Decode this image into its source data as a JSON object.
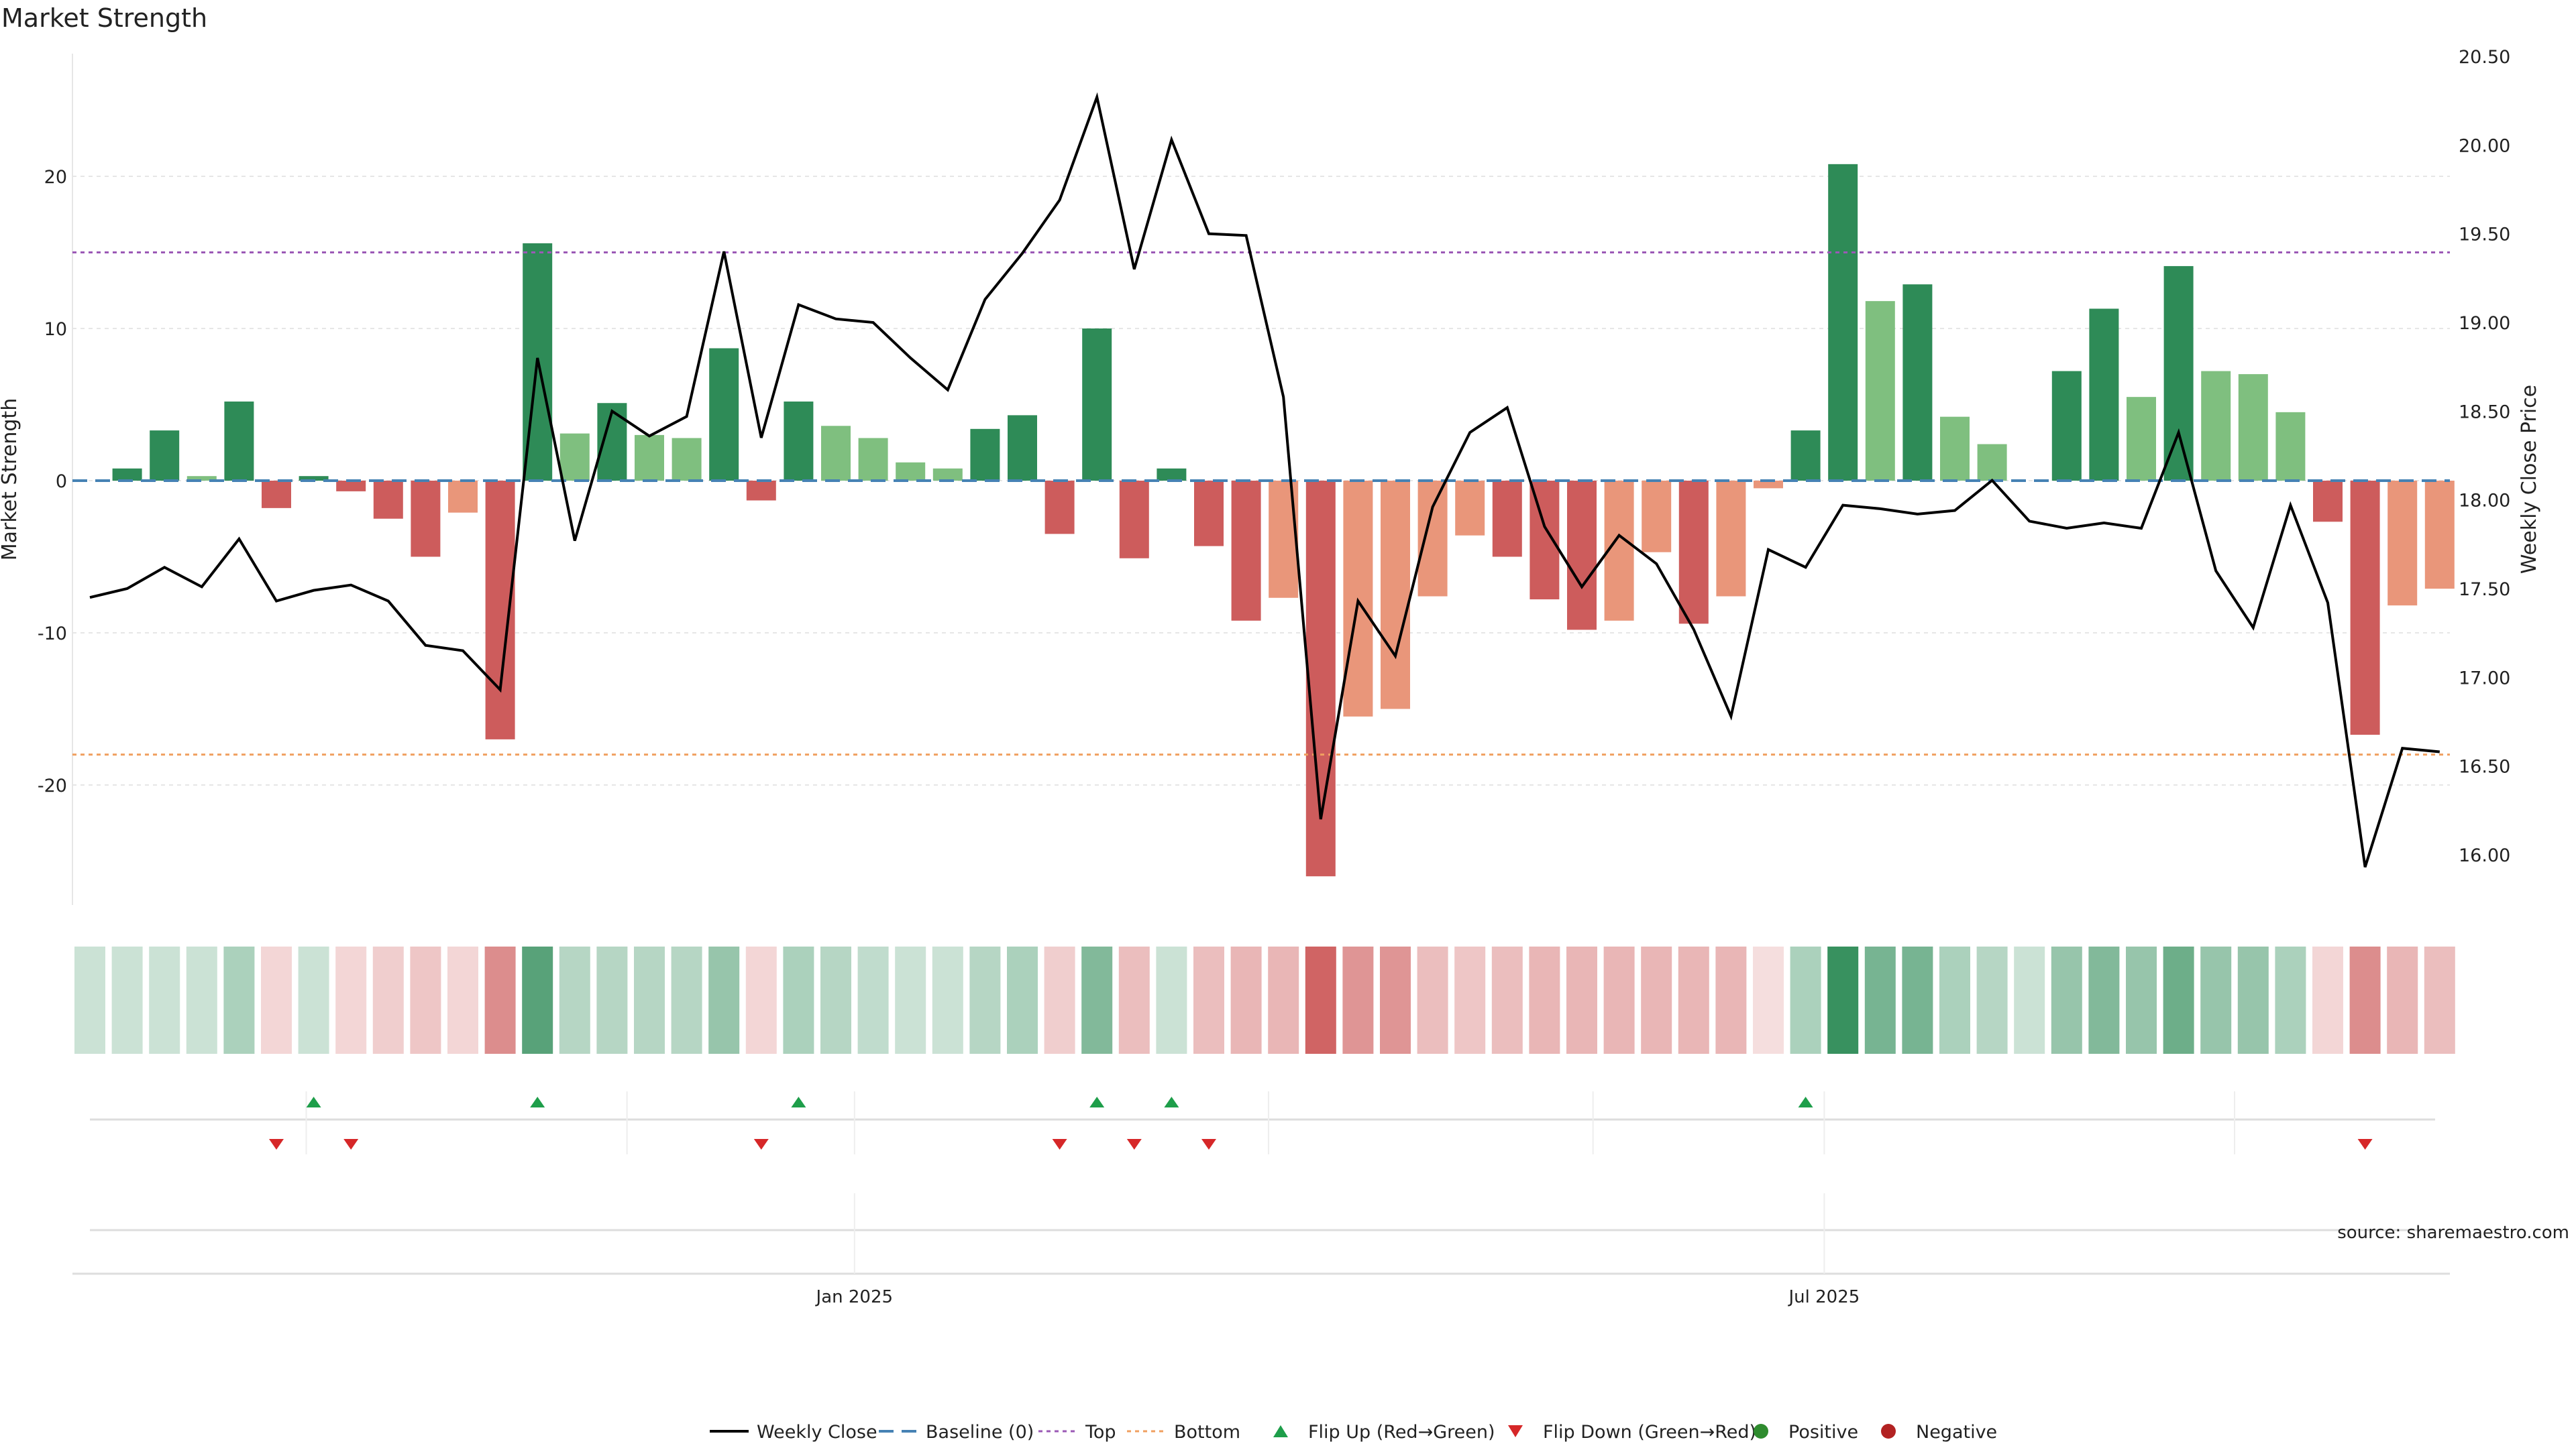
{
  "colors": {
    "strong_green": "#2e8b57",
    "light_green": "#7fbf7f",
    "strong_red": "#cd5c5c",
    "light_red": "#e9967a",
    "price_line": "#000000",
    "baseline": "#4682b4",
    "top": "#9b59b6",
    "bottom": "#f0a060",
    "flip_up": "#1e9e4a",
    "flip_down": "#d62728",
    "positive": "#2e8b2e",
    "negative": "#b22222",
    "source_text": "#888888"
  },
  "chart_data": {
    "type": "bar",
    "title": "Market Strength",
    "ylabel": "Market Strength",
    "y2label": "Weekly Close Price",
    "ylim": [
      -28,
      28
    ],
    "y2lim": [
      15.8,
      20.5
    ],
    "yticks": [
      -20,
      -10,
      0,
      10,
      20
    ],
    "y2ticks": [
      16.0,
      16.5,
      17.0,
      17.5,
      18.0,
      18.5,
      19.0,
      19.5,
      20.0,
      20.5
    ],
    "x_date_ticks": [
      {
        "index": 20.5,
        "label": "Jan 2025"
      },
      {
        "index": 46.5,
        "label": "Jul 2025"
      }
    ],
    "top_level": 15.0,
    "bottom_level": -18.0,
    "baseline": 0,
    "strength": [
      0.0,
      0.8,
      3.3,
      0.3,
      5.2,
      -1.8,
      0.3,
      -0.7,
      -2.5,
      -5.0,
      -2.1,
      -17.0,
      15.6,
      3.1,
      5.1,
      3.0,
      2.8,
      8.7,
      -1.3,
      5.2,
      3.6,
      2.8,
      1.2,
      0.8,
      3.4,
      4.3,
      -3.5,
      10.0,
      -5.1,
      0.8,
      -4.3,
      -9.2,
      -7.7,
      -26.0,
      -15.5,
      -15.0,
      -7.6,
      -3.6,
      -5.0,
      -7.8,
      -9.8,
      -9.2,
      -4.7,
      -9.4,
      -7.6,
      -0.5,
      3.3,
      20.8,
      11.8,
      12.9,
      4.2,
      2.4,
      0.0,
      7.2,
      11.3,
      5.5,
      14.1,
      7.2,
      7.0,
      4.5,
      -2.7,
      -16.7,
      -8.2,
      -7.1
    ],
    "strength_level": [
      "strong",
      "strong",
      "strong",
      "weak",
      "strong",
      "strong",
      "strong",
      "strong",
      "strong",
      "strong",
      "weak",
      "strong",
      "strong",
      "weak",
      "strong",
      "weak",
      "weak",
      "strong",
      "strong",
      "strong",
      "weak",
      "weak",
      "weak",
      "weak",
      "strong",
      "strong",
      "strong",
      "strong",
      "strong",
      "strong",
      "strong",
      "strong",
      "weak",
      "strong",
      "weak",
      "weak",
      "weak",
      "weak",
      "strong",
      "strong",
      "strong",
      "weak",
      "weak",
      "strong",
      "weak",
      "weak",
      "strong",
      "strong",
      "weak",
      "strong",
      "weak",
      "weak",
      "weak",
      "strong",
      "strong",
      "weak",
      "strong",
      "weak",
      "weak",
      "weak",
      "strong",
      "strong",
      "weak",
      "weak"
    ],
    "weekly_close": [
      17.45,
      17.5,
      17.62,
      17.51,
      17.78,
      17.43,
      17.49,
      17.52,
      17.43,
      17.18,
      17.15,
      16.93,
      18.8,
      17.77,
      18.5,
      18.36,
      18.47,
      19.4,
      18.35,
      19.1,
      19.02,
      19.0,
      18.8,
      18.62,
      19.13,
      19.39,
      19.69,
      20.27,
      19.3,
      20.03,
      19.5,
      19.49,
      18.58,
      16.2,
      17.43,
      17.12,
      17.96,
      18.38,
      18.52,
      17.85,
      17.51,
      17.8,
      17.64,
      17.27,
      16.78,
      17.72,
      17.62,
      17.97,
      17.95,
      17.92,
      17.94,
      18.11,
      17.88,
      17.84,
      17.87,
      17.84,
      18.38,
      17.6,
      17.28,
      17.97,
      17.42,
      15.93,
      16.6,
      16.58
    ],
    "heatmap_intensity": [
      0.25,
      0.25,
      0.25,
      0.25,
      0.4,
      0.25,
      0.25,
      0.25,
      0.3,
      0.35,
      0.25,
      0.7,
      0.8,
      0.35,
      0.35,
      0.35,
      0.35,
      0.5,
      0.25,
      0.4,
      0.35,
      0.3,
      0.25,
      0.25,
      0.35,
      0.4,
      0.3,
      0.6,
      0.4,
      0.25,
      0.4,
      0.45,
      0.45,
      0.95,
      0.65,
      0.65,
      0.4,
      0.35,
      0.4,
      0.45,
      0.45,
      0.45,
      0.45,
      0.45,
      0.45,
      0.2,
      0.4,
      0.95,
      0.65,
      0.65,
      0.4,
      0.35,
      0.25,
      0.5,
      0.6,
      0.5,
      0.7,
      0.5,
      0.5,
      0.4,
      0.25,
      0.7,
      0.45,
      0.4
    ],
    "flip_up_indices": [
      6,
      12,
      19,
      27,
      29,
      46
    ],
    "flip_down_indices": [
      5,
      7,
      18,
      26,
      28,
      30,
      61
    ],
    "legend": {
      "position": "bottom",
      "entries": [
        "Weekly Close",
        "Baseline (0)",
        "Top",
        "Bottom",
        "Flip Up (Red→Green)",
        "Flip Down (Green→Red)",
        "Positive",
        "Negative"
      ]
    },
    "source": "source: sharemaestro.com"
  }
}
